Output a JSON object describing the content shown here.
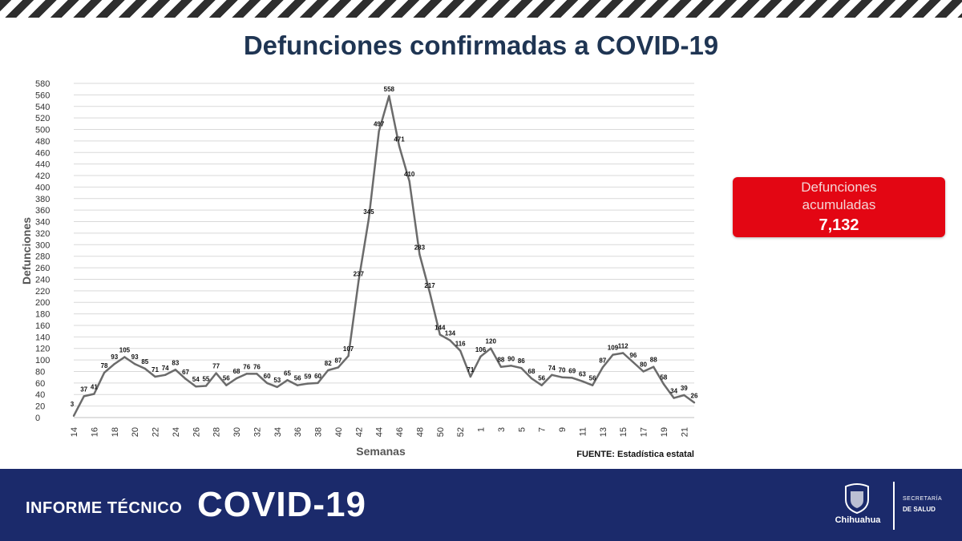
{
  "chart_data": {
    "type": "line",
    "title": "Defunciones confirmadas a COVID-19",
    "xlabel": "Semanas",
    "ylabel": "Defunciones",
    "source": "FUENTE: Estadística estatal",
    "ylim": [
      0,
      580
    ],
    "ytick_step": 20,
    "grid": true,
    "x": [
      14,
      15,
      16,
      17,
      18,
      19,
      20,
      21,
      22,
      23,
      24,
      25,
      26,
      27,
      28,
      29,
      30,
      31,
      32,
      33,
      34,
      35,
      36,
      37,
      38,
      39,
      40,
      41,
      42,
      43,
      44,
      45,
      46,
      47,
      48,
      49,
      50,
      51,
      52,
      53,
      1,
      2,
      3,
      4,
      5,
      6,
      7,
      8,
      9,
      10,
      11,
      12,
      13,
      14,
      15,
      16,
      17,
      18,
      19,
      20,
      21,
      22
    ],
    "xtick_labels": [
      "14",
      "16",
      "18",
      "20",
      "22",
      "24",
      "26",
      "28",
      "30",
      "32",
      "34",
      "36",
      "38",
      "40",
      "42",
      "44",
      "46",
      "48",
      "50",
      "52",
      "1",
      "3",
      "5",
      "7",
      "9",
      "11",
      "13",
      "15",
      "17",
      "19",
      "21"
    ],
    "series": [
      {
        "values": [
          3,
          37,
          41,
          78,
          93,
          105,
          93,
          85,
          71,
          74,
          83,
          67,
          54,
          55,
          77,
          56,
          68,
          76,
          76,
          60,
          53,
          65,
          56,
          59,
          60,
          82,
          87,
          107,
          237,
          345,
          497,
          558,
          471,
          410,
          283,
          217,
          144,
          134,
          116,
          71,
          106,
          120,
          88,
          90,
          86,
          68,
          56,
          74,
          70,
          69,
          63,
          56,
          87,
          109,
          112,
          96,
          80,
          88,
          58,
          34,
          39,
          26
        ],
        "labels": [
          "3",
          "37",
          "41",
          "78",
          "93",
          "105",
          "93",
          "85",
          "71",
          "74",
          "83",
          "67",
          "54",
          "55",
          "77",
          "56",
          "68",
          "76",
          "76",
          "60",
          "53",
          "65",
          "56",
          "59",
          "60",
          "82",
          "87",
          "107",
          "237",
          "345",
          "497",
          "558",
          "471",
          "410",
          "283",
          "217",
          "144",
          "134",
          "116",
          "71",
          "106",
          "120",
          "88",
          "90",
          "86",
          "68",
          "56",
          "74",
          "70",
          "69",
          "63",
          "56",
          "87",
          "109",
          "112",
          "96",
          "80",
          "88",
          "58",
          "34",
          "39",
          "26"
        ]
      }
    ]
  },
  "badge": {
    "line1": "Defunciones",
    "line2": "acumuladas",
    "value": "7,132"
  },
  "footer": {
    "informe": "INFORME TÉCNICO",
    "covid": "COVID-19",
    "state": "Chihuahua",
    "secretaria": "SECRETARÍA",
    "salud": "DE SALUD"
  },
  "colors": {
    "line": "#6b6b6b",
    "grid": "#d9d9d9",
    "title": "#1f3553",
    "badge": "#e30613",
    "footer": "#1b2a6b"
  }
}
